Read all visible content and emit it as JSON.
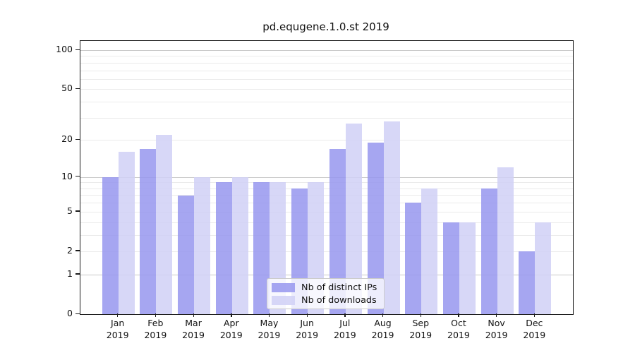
{
  "chart_data": {
    "type": "bar",
    "title": "pd.equgene.1.0.st 2019",
    "categories": [
      "Jan",
      "Feb",
      "Mar",
      "Apr",
      "May",
      "Jun",
      "Jul",
      "Aug",
      "Sep",
      "Oct",
      "Nov",
      "Dec"
    ],
    "category_year_sublabel": "2019",
    "series": [
      {
        "name": "Nb of distinct IPs",
        "color": "rgba(150,150,238,0.85)",
        "values": [
          10,
          17,
          7,
          9,
          9,
          8,
          17,
          19,
          6,
          4,
          8,
          2
        ]
      },
      {
        "name": "Nb of downloads",
        "color": "rgba(208,208,246,0.85)",
        "values": [
          16,
          22,
          10,
          10,
          9,
          9,
          27,
          28,
          8,
          4,
          12,
          4
        ]
      }
    ],
    "yscale": "log1p",
    "yticks": [
      0,
      1,
      2,
      5,
      10,
      20,
      50,
      100
    ],
    "ylim": [
      0,
      130
    ],
    "grid": {
      "on": true,
      "major_color": "#c9c9c9",
      "minor_color": "#ebebeb"
    },
    "legend_position": "lower center"
  }
}
